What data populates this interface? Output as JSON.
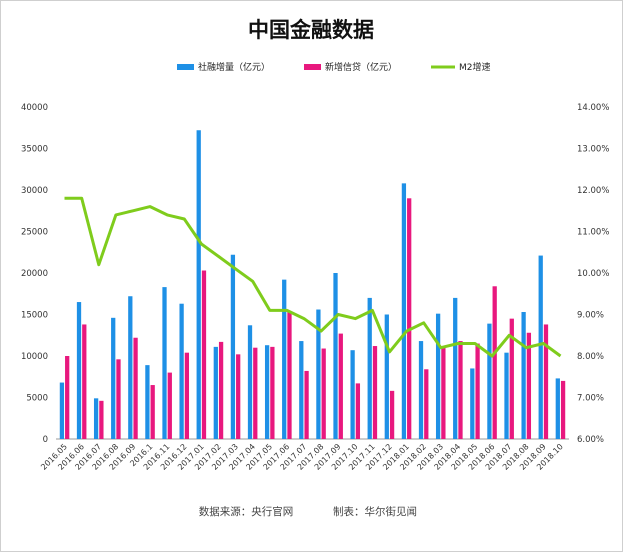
{
  "chart_data": {
    "type": "bar",
    "title": "中国金融数据",
    "categories": [
      "2016.05",
      "2016.06",
      "2016.07",
      "2016.08",
      "2016.09",
      "2016.1",
      "2016.11",
      "2016.12",
      "2017.01",
      "2017.02",
      "2017.03",
      "2017.04",
      "2017.05",
      "2017.06",
      "2017.07",
      "2017.08",
      "2017.09",
      "2017.10",
      "2017.11",
      "2017.12",
      "2018.01",
      "2018.02",
      "2018.03",
      "2018.04",
      "2018.05",
      "2018.06",
      "2018.07",
      "2018.08",
      "2018.09",
      "2018.10"
    ],
    "series": [
      {
        "name": "社融增量（亿元）",
        "type": "bar",
        "axis": "left",
        "color": "#1e90e6",
        "values": [
          6800,
          16500,
          4900,
          14600,
          17200,
          8900,
          18300,
          16300,
          37200,
          11100,
          22200,
          13700,
          11300,
          19200,
          11800,
          15600,
          20000,
          10700,
          17000,
          15000,
          30800,
          11800,
          15100,
          17000,
          8500,
          13900,
          10400,
          15300,
          22100,
          7300
        ]
      },
      {
        "name": "新增信贷（亿元）",
        "type": "bar",
        "axis": "left",
        "color": "#e8187e",
        "values": [
          10000,
          13800,
          4600,
          9600,
          12200,
          6500,
          8000,
          10400,
          20300,
          11700,
          10200,
          11000,
          11100,
          15400,
          8200,
          10900,
          12700,
          6700,
          11200,
          5800,
          29000,
          8400,
          11200,
          11800,
          11500,
          18400,
          14500,
          12800,
          13800,
          7000
        ]
      },
      {
        "name": "M2增速",
        "type": "line",
        "axis": "right",
        "color": "#7fcc1c",
        "values": [
          11.8,
          11.8,
          10.2,
          11.4,
          11.5,
          11.6,
          11.4,
          11.3,
          10.7,
          10.4,
          10.1,
          9.8,
          9.1,
          9.1,
          8.9,
          8.6,
          9.0,
          8.9,
          9.1,
          8.1,
          8.6,
          8.8,
          8.2,
          8.3,
          8.3,
          8.0,
          8.5,
          8.2,
          8.3,
          8.0
        ]
      }
    ],
    "ylim_left": [
      0,
      40000
    ],
    "yticks_left": [
      "0",
      "5000",
      "10000",
      "15000",
      "20000",
      "25000",
      "30000",
      "35000",
      "40000"
    ],
    "ylim_right": [
      6.0,
      14.0
    ],
    "yticks_right": [
      "6.00%",
      "7.00%",
      "8.00%",
      "9.00%",
      "10.00%",
      "11.00%",
      "12.00%",
      "13.00%",
      "14.00%"
    ],
    "grid": false,
    "legend_position": "top",
    "footer": {
      "source": "数据来源：央行官网",
      "maker": "制表：华尔街见闻"
    }
  }
}
